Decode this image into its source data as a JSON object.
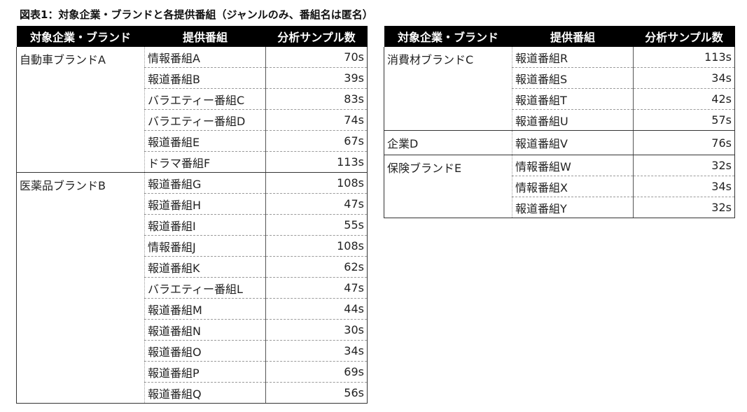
{
  "title": "図表1：対象企業・ブランドと各提供番組（ジャンルのみ、番組名は匿名）",
  "headers": {
    "brand": "対象企業・ブランド",
    "program": "提供番組",
    "samples": "分析サンプル数"
  },
  "left_table": [
    {
      "brand": "自動車ブランドA",
      "rows": [
        {
          "program": "情報番組A",
          "samples": "70s"
        },
        {
          "program": "報道番組B",
          "samples": "39s"
        },
        {
          "program": "バラエティー番組C",
          "samples": "83s"
        },
        {
          "program": "バラエティー番組D",
          "samples": "74s"
        },
        {
          "program": "報道番組E",
          "samples": "67s"
        },
        {
          "program": "ドラマ番組F",
          "samples": "113s"
        }
      ]
    },
    {
      "brand": "医薬品ブランドB",
      "rows": [
        {
          "program": "報道番組G",
          "samples": "108s"
        },
        {
          "program": "報道番組H",
          "samples": "47s"
        },
        {
          "program": "報道番組I",
          "samples": "55s"
        },
        {
          "program": "情報番組J",
          "samples": "108s"
        },
        {
          "program": "報道番組K",
          "samples": "62s"
        },
        {
          "program": "バラエティー番組L",
          "samples": "47s"
        },
        {
          "program": "報道番組M",
          "samples": "44s"
        },
        {
          "program": "報道番組N",
          "samples": "30s"
        },
        {
          "program": "報道番組O",
          "samples": "34s"
        },
        {
          "program": "報道番組P",
          "samples": "69s"
        },
        {
          "program": "報道番組Q",
          "samples": "56s"
        }
      ]
    }
  ],
  "right_table": [
    {
      "brand": "消費材ブランドC",
      "rows": [
        {
          "program": "報道番組R",
          "samples": "113s"
        },
        {
          "program": "報道番組S",
          "samples": "34s"
        },
        {
          "program": "報道番組T",
          "samples": "42s"
        },
        {
          "program": "報道番組U",
          "samples": "57s"
        }
      ]
    },
    {
      "brand": "企業D",
      "rows": [
        {
          "program": "報道番組V",
          "samples": "76s"
        }
      ]
    },
    {
      "brand": "保険ブランドE",
      "rows": [
        {
          "program": "情報番組W",
          "samples": "32s"
        },
        {
          "program": "情報番組X",
          "samples": "34s"
        },
        {
          "program": "報道番組Y",
          "samples": "32s"
        }
      ]
    }
  ]
}
